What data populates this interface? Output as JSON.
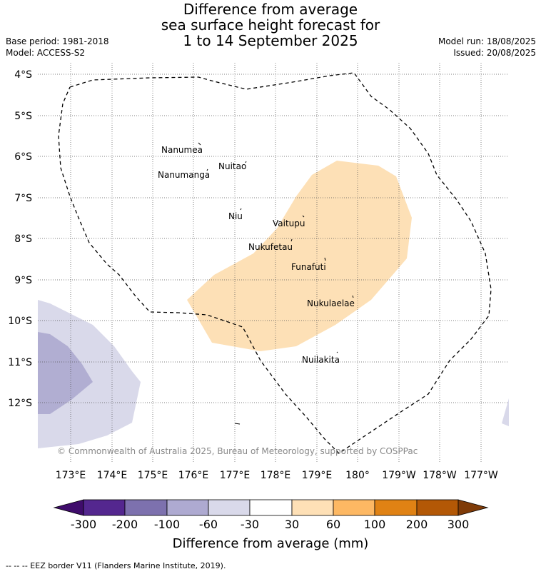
{
  "title": {
    "line1": "Difference from average",
    "line2": "sea surface height forecast for",
    "line3": "1 to 14 September 2025"
  },
  "meta_left": {
    "base_period": "Base period: 1981-2018",
    "model": "Model: ACCESS-S2"
  },
  "meta_right": {
    "model_run": "Model run: 18/08/2025",
    "issued": "Issued: 20/08/2025"
  },
  "map": {
    "lat_labels": [
      "4°S",
      "5°S",
      "6°S",
      "7°S",
      "8°S",
      "9°S",
      "10°S",
      "11°S",
      "12°S"
    ],
    "lon_labels": [
      "173°E",
      "174°E",
      "175°E",
      "176°E",
      "177°E",
      "178°E",
      "179°E",
      "180°",
      "179°W",
      "178°W",
      "177°W"
    ],
    "islands": [
      "Nanumea",
      "Nuitao",
      "Nanumanga",
      "Niu",
      "Vaitupu",
      "Nukufetau",
      "Funafuti",
      "Nukulaelae",
      "Nuilakita"
    ],
    "copyright": "© Commonwealth of Australia 2025, Bureau of Meteorology, supported by COSPPac",
    "fill_colors": {
      "positive_30_60": "#fde0b6",
      "negative_60_30": "#d9d9ea",
      "negative_100_60": "#b1aed2"
    }
  },
  "colorbar": {
    "labels": [
      "-300",
      "-200",
      "-100",
      "-60",
      "-30",
      "30",
      "60",
      "100",
      "200",
      "300"
    ],
    "colors": [
      "#3f0c6b",
      "#54278f",
      "#7d71ae",
      "#aeaad1",
      "#d9d9ea",
      "#ffffff",
      "#fee0b6",
      "#fdb863",
      "#e08214",
      "#b35806",
      "#7f3b08"
    ],
    "title": "Difference from average (mm)"
  },
  "footnote": "-- -- -- EEZ border V11 (Flanders Marine Institute, 2019)."
}
